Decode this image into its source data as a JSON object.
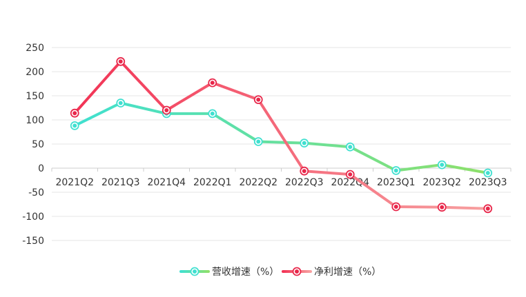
{
  "chart_data": {
    "type": "line",
    "categories": [
      "2021Q2",
      "2021Q3",
      "2021Q4",
      "2022Q1",
      "2022Q2",
      "2022Q3",
      "2022Q4",
      "2023Q1",
      "2023Q2",
      "2023Q3"
    ],
    "series": [
      {
        "name": "营收增速（%）",
        "values": [
          88,
          135,
          113,
          113,
          55,
          52,
          44,
          -5,
          7,
          -10
        ],
        "color_start": "#40e0d0",
        "color_end": "#8ee06a",
        "marker_color": "#40e0d0"
      },
      {
        "name": "净利增速（%）",
        "values": [
          114,
          221,
          120,
          177,
          142,
          -6,
          -13,
          -80,
          -81,
          -84
        ],
        "color_start": "#f23355",
        "color_end": "#f7a0a0",
        "marker_color": "#e8274a"
      }
    ],
    "yticks": [
      "250",
      "200",
      "150",
      "100",
      "50",
      "0",
      "-50",
      "-100",
      "-150"
    ],
    "ylim": [
      -150,
      250
    ],
    "grid": true,
    "legend": "bottom-center"
  }
}
